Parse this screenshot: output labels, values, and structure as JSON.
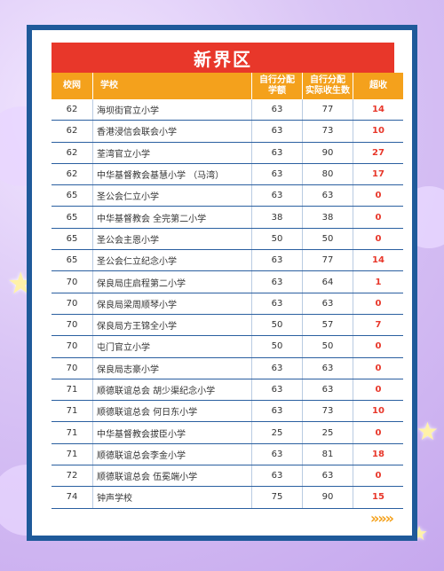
{
  "title": "新界区",
  "headers": {
    "net": "校网",
    "school": "学校",
    "allocated": "自行分配\n学额",
    "admitted": "自行分配\n实际收生数",
    "over": "超收"
  },
  "rows": [
    {
      "net": "62",
      "school": "海坝街官立小学",
      "allocated": "63",
      "admitted": "77",
      "over": "14"
    },
    {
      "net": "62",
      "school": "香港浸信会联会小学",
      "allocated": "63",
      "admitted": "73",
      "over": "10"
    },
    {
      "net": "62",
      "school": "荃湾官立小学",
      "allocated": "63",
      "admitted": "90",
      "over": "27"
    },
    {
      "net": "62",
      "school": "中华基督教会基慧小学 （马湾）",
      "allocated": "63",
      "admitted": "80",
      "over": "17"
    },
    {
      "net": "65",
      "school": "圣公会仁立小学",
      "allocated": "63",
      "admitted": "63",
      "over": "0"
    },
    {
      "net": "65",
      "school": "中华基督教会 全完第二小学",
      "allocated": "38",
      "admitted": "38",
      "over": "0"
    },
    {
      "net": "65",
      "school": "圣公会主恩小学",
      "allocated": "50",
      "admitted": "50",
      "over": "0"
    },
    {
      "net": "65",
      "school": "圣公会仁立纪念小学",
      "allocated": "63",
      "admitted": "77",
      "over": "14"
    },
    {
      "net": "70",
      "school": "保良局庄启程第二小学",
      "allocated": "63",
      "admitted": "64",
      "over": "1"
    },
    {
      "net": "70",
      "school": "保良局梁周顺琴小学",
      "allocated": "63",
      "admitted": "63",
      "over": "0"
    },
    {
      "net": "70",
      "school": "保良局方王锦全小学",
      "allocated": "50",
      "admitted": "57",
      "over": "7"
    },
    {
      "net": "70",
      "school": "屯门官立小学",
      "allocated": "50",
      "admitted": "50",
      "over": "0"
    },
    {
      "net": "70",
      "school": "保良局志豪小学",
      "allocated": "63",
      "admitted": "63",
      "over": "0"
    },
    {
      "net": "71",
      "school": "顺德联谊总会 胡少渠纪念小学",
      "allocated": "63",
      "admitted": "63",
      "over": "0"
    },
    {
      "net": "71",
      "school": "顺德联谊总会 何日东小学",
      "allocated": "63",
      "admitted": "73",
      "over": "10"
    },
    {
      "net": "71",
      "school": "中华基督教会拔臣小学",
      "allocated": "25",
      "admitted": "25",
      "over": "0"
    },
    {
      "net": "71",
      "school": "顺德联谊总会李金小学",
      "allocated": "63",
      "admitted": "81",
      "over": "18"
    },
    {
      "net": "72",
      "school": "顺德联谊总会 伍冕端小学",
      "allocated": "63",
      "admitted": "63",
      "over": "0"
    },
    {
      "net": "74",
      "school": "钟声学校",
      "allocated": "75",
      "admitted": "90",
      "over": "15"
    }
  ],
  "footer_arrows": "»»»",
  "colors": {
    "border": "#1f5a9a",
    "title_bg": "#e8372a",
    "header_bg": "#f4a11c",
    "over_text": "#e8372a"
  }
}
